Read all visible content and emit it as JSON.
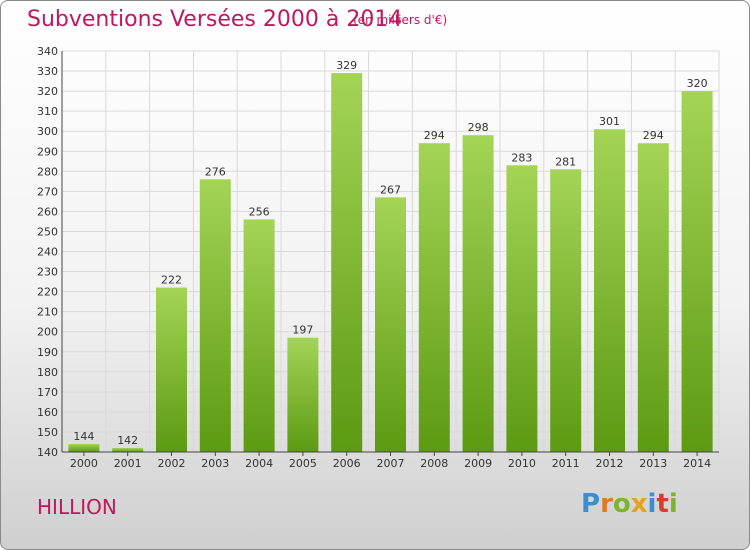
{
  "title": "Subventions Versées 2000 à 2014",
  "unit_note": "(en milliers d'€)",
  "commune": "HILLION",
  "logo": {
    "text": "Proxiti",
    "letters": [
      {
        "ch": "P",
        "color": "#3a8fd0"
      },
      {
        "ch": "r",
        "color": "#e07a1c"
      },
      {
        "ch": "o",
        "color": "#7cb52a"
      },
      {
        "ch": "x",
        "color": "#e8a21a"
      },
      {
        "ch": "i",
        "color": "#3a8fd0"
      },
      {
        "ch": "t",
        "color": "#d6402a"
      },
      {
        "ch": "i",
        "color": "#7cb52a"
      }
    ]
  },
  "colors": {
    "accent": "#c0185e",
    "bar_top": "#a4d456",
    "bar_bottom": "#5c9a12",
    "grid": "#d9d9d9"
  },
  "chart_data": {
    "type": "bar",
    "categories": [
      "2000",
      "2001",
      "2002",
      "2003",
      "2004",
      "2005",
      "2006",
      "2007",
      "2008",
      "2009",
      "2010",
      "2011",
      "2012",
      "2013",
      "2014"
    ],
    "values": [
      144,
      142,
      222,
      276,
      256,
      197,
      329,
      267,
      294,
      298,
      283,
      281,
      301,
      294,
      320
    ],
    "title": "Subventions Versées 2000 à 2014",
    "xlabel": "",
    "ylabel": "",
    "ylim": [
      140,
      340
    ],
    "ytick_step": 10,
    "grid": true,
    "legend": "none"
  }
}
